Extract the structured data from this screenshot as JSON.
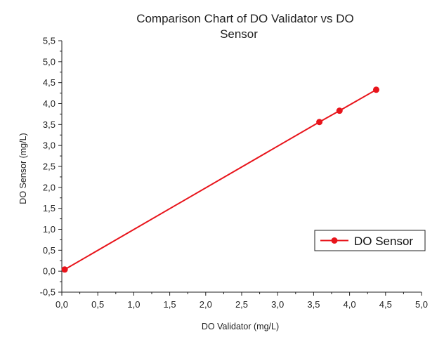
{
  "chart_data": {
    "type": "line",
    "title_lines": [
      "Comparison Chart of DO Validator vs DO",
      "Sensor"
    ],
    "xlabel": "DO Validator (mg/L)",
    "ylabel": "DO Sensor (mg/L)",
    "xlim": [
      0,
      5
    ],
    "ylim": [
      -0.5,
      5.5
    ],
    "x_ticks": [
      0,
      0.5,
      1,
      1.5,
      2,
      2.5,
      3,
      3.5,
      4,
      4.5,
      5
    ],
    "y_ticks": [
      -0.5,
      0,
      0.5,
      1,
      1.5,
      2,
      2.5,
      3,
      3.5,
      4,
      4.5,
      5,
      5.5
    ],
    "x_tick_labels": [
      "0,0",
      "0,5",
      "1,0",
      "1,5",
      "2,0",
      "2,5",
      "3,0",
      "3,5",
      "4,0",
      "4,5",
      "5,0"
    ],
    "y_tick_labels": [
      "-0,5",
      "0,0",
      "0,5",
      "1,0",
      "1,5",
      "2,0",
      "2,5",
      "3,0",
      "3,5",
      "4,0",
      "4,5",
      "5,0",
      "5,5"
    ],
    "legend_position": "lower-right",
    "grid": false,
    "series": [
      {
        "name": "DO Sensor",
        "color": "#e8141b",
        "marker": "circle",
        "x": [
          0.04,
          3.58,
          3.86,
          4.37
        ],
        "y": [
          0.04,
          3.56,
          3.83,
          4.33
        ]
      }
    ]
  }
}
